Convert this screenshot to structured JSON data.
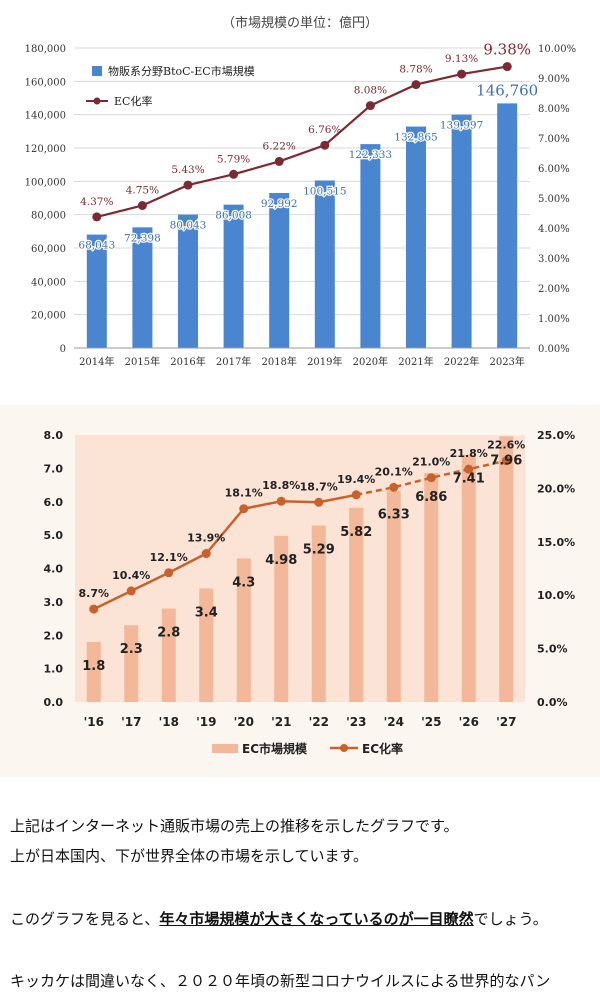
{
  "chart_data": [
    {
      "type": "bar+line",
      "title": "（市場規模の単位：億円）",
      "categories": [
        "2014年",
        "2015年",
        "2016年",
        "2017年",
        "2018年",
        "2019年",
        "2020年",
        "2021年",
        "2022年",
        "2023年"
      ],
      "series": [
        {
          "name": "物販系分野BtoC-EC市場規模",
          "type": "bar",
          "axis": "left",
          "values": [
            68043,
            72398,
            80043,
            86008,
            92992,
            100515,
            122333,
            132865,
            139997,
            146760
          ],
          "labels": [
            "68,043",
            "72,398",
            "80,043",
            "86,008",
            "92,992",
            "100,515",
            "122,333",
            "132,865",
            "139,997",
            "146,760"
          ]
        },
        {
          "name": "EC化率",
          "type": "line",
          "axis": "right",
          "values": [
            4.37,
            4.75,
            5.43,
            5.79,
            6.22,
            6.76,
            8.08,
            8.78,
            9.13,
            9.38
          ],
          "labels": [
            "4.37%",
            "4.75%",
            "5.43%",
            "5.79%",
            "6.22%",
            "6.76%",
            "8.08%",
            "8.78%",
            "9.13%",
            "9.38%"
          ]
        }
      ],
      "ylim": [
        0,
        180000
      ],
      "y_ticks": [
        "0",
        "20,000",
        "40,000",
        "60,000",
        "80,000",
        "100,000",
        "120,000",
        "140,000",
        "160,000",
        "180,000"
      ],
      "y2lim": [
        0,
        10
      ],
      "y2_ticks": [
        "0.00%",
        "1.00%",
        "2.00%",
        "3.00%",
        "4.00%",
        "5.00%",
        "6.00%",
        "7.00%",
        "8.00%",
        "9.00%",
        "10.00%"
      ],
      "grid": true,
      "legend": "top-left",
      "colors": {
        "bar": "#4a86cf",
        "line": "#7b2a33",
        "label_bar": "#3f6fb0",
        "label_line": "#7b2a33"
      }
    },
    {
      "type": "bar+line",
      "categories": [
        "'16",
        "'17",
        "'18",
        "'19",
        "'20",
        "'21",
        "'22",
        "'23",
        "'24",
        "'25",
        "'26",
        "'27"
      ],
      "series": [
        {
          "name": "EC市場規模",
          "type": "bar",
          "axis": "left",
          "values": [
            1.8,
            2.3,
            2.8,
            3.4,
            4.3,
            4.98,
            5.29,
            5.82,
            6.33,
            6.86,
            7.41,
            7.96
          ],
          "labels": [
            "1.8",
            "2.3",
            "2.8",
            "3.4",
            "4.3",
            "4.98",
            "5.29",
            "5.82",
            "6.33",
            "6.86",
            "7.41",
            "7.96"
          ]
        },
        {
          "name": "EC化率",
          "type": "line",
          "axis": "right",
          "values": [
            8.7,
            10.4,
            12.1,
            13.9,
            18.1,
            18.8,
            18.7,
            19.4,
            20.1,
            21.0,
            21.8,
            22.6
          ],
          "labels": [
            "8.7%",
            "10.4%",
            "12.1%",
            "13.9%",
            "18.1%",
            "18.8%",
            "18.7%",
            "19.4%",
            "20.1%",
            "21.0%",
            "21.8%",
            "22.6%"
          ],
          "dashed_from": "'23"
        }
      ],
      "ylim": [
        0,
        8
      ],
      "y_ticks": [
        "0.0",
        "1.0",
        "2.0",
        "3.0",
        "4.0",
        "5.0",
        "6.0",
        "7.0",
        "8.0"
      ],
      "y2lim": [
        0,
        25
      ],
      "y2_ticks": [
        "0.0%",
        "5.0%",
        "10.0%",
        "15.0%",
        "20.0%",
        "25.0%"
      ],
      "grid": false,
      "legend": "bottom-center",
      "colors": {
        "bar": "#f2b899",
        "line": "#c8622a",
        "plot_bg": "#fbe3d6",
        "block_bg": "#fbf6f0",
        "bar_label": "#222222"
      }
    }
  ],
  "article": {
    "line1": "上記はインターネット通販市場の売上の推移を示したグラフです。",
    "line2": "上が日本国内、下が世界全体の市場を示しています。",
    "line3_pre": "このグラフを見ると、",
    "line3_bold": "年々市場規模が大きくなっているのが一目瞭然",
    "line3_post": "でしょう。",
    "line4": "キッカケは間違いなく、２０２０年頃の新型コロナウイルスによる世界的なパン"
  }
}
